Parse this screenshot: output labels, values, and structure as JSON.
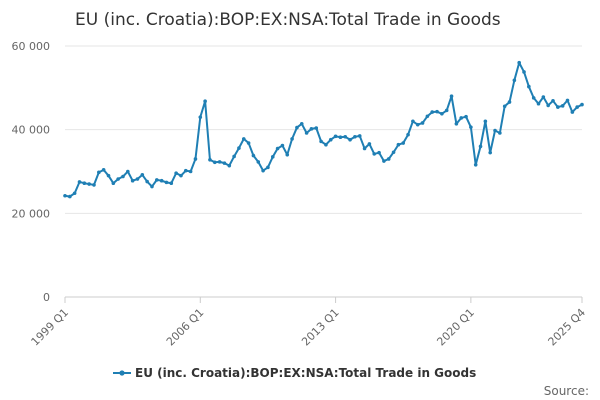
{
  "chart_data": {
    "type": "line",
    "title": "EU (inc. Croatia):BOP:EX:NSA:Total Trade in Goods",
    "xlabel": "",
    "ylabel": "",
    "x_start": "1999 Q1",
    "x_end": "2025 Q4",
    "x_tick_labels": [
      "1999 Q1",
      "2006 Q1",
      "2013 Q1",
      "2020 Q1",
      "2025 Q4"
    ],
    "y_ticks": [
      0,
      20000,
      40000,
      60000
    ],
    "y_tick_labels": [
      "0",
      "20 000",
      "40 000",
      "60 000"
    ],
    "ylim": [
      0,
      60000
    ],
    "grid": true,
    "legend_position": "bottom",
    "series": [
      {
        "name": "EU (inc. Croatia):BOP:EX:NSA:Total Trade in Goods",
        "color": "#1f7fb4",
        "values": [
          24200,
          24000,
          24800,
          27500,
          27200,
          27000,
          26800,
          29800,
          30400,
          29000,
          27200,
          28200,
          28800,
          30000,
          27800,
          28200,
          29200,
          27600,
          26400,
          28000,
          27800,
          27400,
          27200,
          29600,
          29000,
          30200,
          30000,
          33000,
          43000,
          46800,
          32800,
          32200,
          32300,
          32000,
          31400,
          33600,
          35600,
          37800,
          36800,
          33800,
          32300,
          30200,
          31000,
          33500,
          35500,
          36200,
          34000,
          37800,
          40500,
          41400,
          39200,
          40200,
          40400,
          37200,
          36400,
          37600,
          38400,
          38200,
          38300,
          37600,
          38300,
          38500,
          35500,
          36600,
          34200,
          34500,
          32500,
          33000,
          34600,
          36400,
          36800,
          38800,
          42000,
          41200,
          41600,
          43200,
          44200,
          44300,
          43800,
          44600,
          48000,
          41400,
          42800,
          43100,
          40600,
          31600,
          36000,
          42000,
          34500,
          39800,
          39200,
          45600,
          46600,
          51800,
          56000,
          53800,
          50300,
          47600,
          46200,
          47800,
          45800,
          46900,
          45400,
          45700,
          47000,
          44200,
          45400,
          46000
        ]
      }
    ]
  },
  "legend": {
    "label": "EU (inc. Croatia):BOP:EX:NSA:Total Trade in Goods"
  },
  "footer": {
    "source": "Source:"
  }
}
